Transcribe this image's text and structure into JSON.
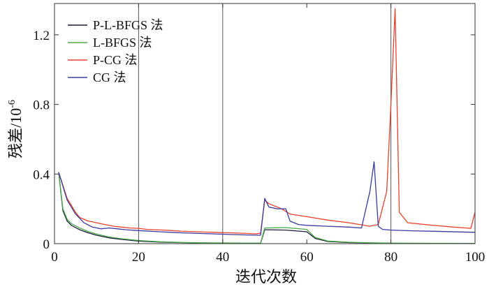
{
  "chart_data": {
    "type": "line",
    "title": "",
    "xlabel": "迭代次数",
    "ylabel": "残差/10⁻⁶",
    "ylabel_parts": {
      "main": "残差/10",
      "exp": "-6"
    },
    "xlim": [
      0,
      100
    ],
    "ylim": [
      0,
      1.38
    ],
    "xticks": [
      0,
      20,
      40,
      60,
      80,
      100
    ],
    "xtick_labels": [
      "0",
      "20",
      "40",
      "60",
      "80",
      "100"
    ],
    "yticks": [
      0,
      0.4,
      0.8,
      1.2
    ],
    "ytick_labels": [
      "0",
      "0.4",
      "0.8",
      "1.2"
    ],
    "vertical_gridlines": [
      20,
      40,
      80
    ],
    "legend_position": "top-left",
    "series": [
      {
        "name": "P-L-BFGS 法",
        "color": "#1a1a3a",
        "x": [
          1,
          2,
          3,
          4,
          6,
          8,
          10,
          13,
          16,
          20,
          25,
          30,
          35,
          40,
          45,
          49,
          50,
          55,
          60,
          62,
          65,
          70,
          75,
          80,
          90,
          100
        ],
        "y": [
          0.41,
          0.19,
          0.13,
          0.105,
          0.08,
          0.062,
          0.048,
          0.033,
          0.024,
          0.015,
          0.009,
          0.006,
          0.004,
          0.003,
          0.002,
          0.002,
          0.08,
          0.078,
          0.068,
          0.03,
          0.012,
          0.006,
          0.004,
          0.002,
          0.001,
          0.001
        ]
      },
      {
        "name": "L-BFGS 法",
        "color": "#4aa84a",
        "x": [
          1,
          2,
          3,
          4,
          6,
          8,
          10,
          13,
          16,
          20,
          25,
          30,
          35,
          40,
          45,
          49,
          50,
          55,
          60,
          62,
          65,
          70,
          75,
          80,
          90,
          100
        ],
        "y": [
          0.41,
          0.2,
          0.14,
          0.115,
          0.09,
          0.07,
          0.055,
          0.038,
          0.028,
          0.018,
          0.011,
          0.007,
          0.005,
          0.004,
          0.003,
          0.003,
          0.09,
          0.092,
          0.082,
          0.035,
          0.015,
          0.008,
          0.005,
          0.003,
          0.002,
          0.001
        ]
      },
      {
        "name": "P-CG 法",
        "color": "#e8412c",
        "x": [
          1,
          3,
          5,
          6,
          8,
          10,
          12,
          14,
          16,
          18,
          20,
          22,
          24,
          26,
          28,
          30,
          32,
          34,
          36,
          38,
          40,
          42,
          44,
          46,
          48,
          49,
          50,
          51,
          52,
          54,
          56,
          60,
          65,
          70,
          75,
          77,
          79,
          80,
          81,
          82,
          84,
          90,
          95,
          99,
          100
        ],
        "y": [
          0.41,
          0.26,
          0.18,
          0.15,
          0.13,
          0.12,
          0.11,
          0.1,
          0.095,
          0.09,
          0.088,
          0.082,
          0.08,
          0.078,
          0.075,
          0.072,
          0.07,
          0.068,
          0.066,
          0.065,
          0.063,
          0.062,
          0.06,
          0.058,
          0.056,
          0.06,
          0.25,
          0.23,
          0.22,
          0.2,
          0.17,
          0.155,
          0.135,
          0.12,
          0.1,
          0.11,
          0.3,
          0.8,
          1.35,
          0.18,
          0.12,
          0.105,
          0.095,
          0.088,
          0.18
        ]
      },
      {
        "name": "CG 法",
        "color": "#3b3a9e",
        "x": [
          1,
          3,
          5,
          7,
          9,
          11,
          13,
          15,
          17,
          20,
          25,
          30,
          35,
          40,
          45,
          49,
          50,
          51,
          53,
          55,
          56,
          58,
          60,
          65,
          70,
          73,
          75,
          76,
          77,
          78,
          80,
          85,
          90,
          100
        ],
        "y": [
          0.41,
          0.25,
          0.17,
          0.12,
          0.095,
          0.085,
          0.09,
          0.085,
          0.08,
          0.075,
          0.068,
          0.062,
          0.058,
          0.054,
          0.05,
          0.048,
          0.26,
          0.21,
          0.2,
          0.2,
          0.13,
          0.11,
          0.105,
          0.1,
          0.095,
          0.09,
          0.3,
          0.47,
          0.1,
          0.082,
          0.078,
          0.074,
          0.071,
          0.065
        ]
      }
    ]
  }
}
